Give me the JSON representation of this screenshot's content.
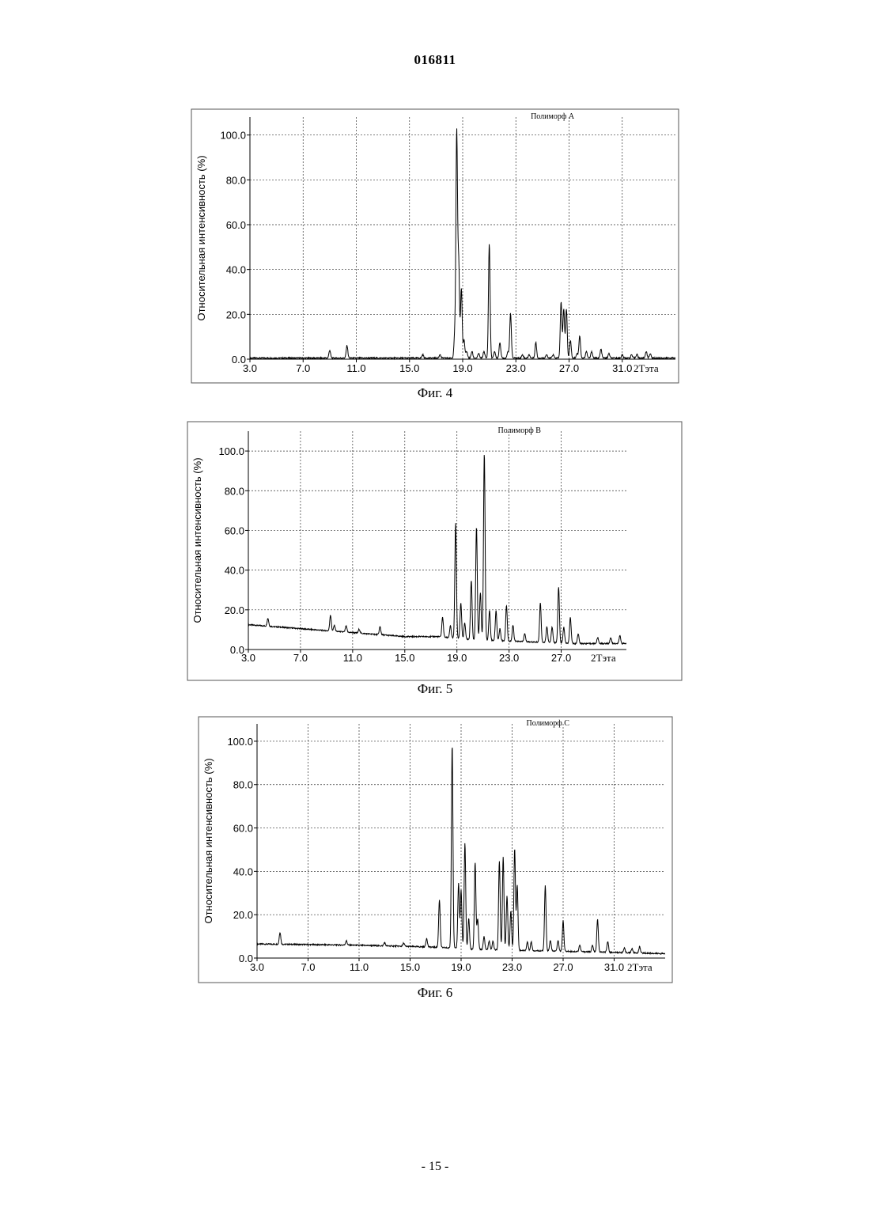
{
  "header": {
    "doc_number": "016811"
  },
  "footer": {
    "page_number": "- 15 -"
  },
  "figures": [
    {
      "caption": "Фиг. 4",
      "chart_data": {
        "type": "line",
        "legend": "Полиморф А",
        "ylabel": "Относительная интенсивность (%)",
        "xunit": "2Тэта",
        "xlim": [
          3.0,
          35.0
        ],
        "ylim": [
          0,
          108
        ],
        "xticks": [
          "3.0",
          "7.0",
          "11.0",
          "15.0",
          "19.0",
          "23.0",
          "27.0",
          "31.0"
        ],
        "yticks": [
          "0.0",
          "20.0",
          "40.0",
          "60.0",
          "80.0",
          "100.0"
        ],
        "grid": true,
        "baseline": 0.5,
        "peaks": [
          [
            9.0,
            3.5
          ],
          [
            10.3,
            5.6
          ],
          [
            16.0,
            1.5
          ],
          [
            17.3,
            1.6
          ],
          [
            18.4,
            10
          ],
          [
            18.55,
            100
          ],
          [
            18.7,
            42
          ],
          [
            18.9,
            31
          ],
          [
            19.1,
            8
          ],
          [
            19.3,
            3
          ],
          [
            19.7,
            3
          ],
          [
            20.2,
            2
          ],
          [
            20.6,
            3
          ],
          [
            21.0,
            51
          ],
          [
            21.4,
            3
          ],
          [
            21.8,
            7
          ],
          [
            22.4,
            3
          ],
          [
            22.6,
            20
          ],
          [
            23.5,
            1.5
          ],
          [
            24.0,
            1.5
          ],
          [
            24.5,
            7
          ],
          [
            25.3,
            1.5
          ],
          [
            25.8,
            1.5
          ],
          [
            26.4,
            25
          ],
          [
            26.6,
            22
          ],
          [
            26.8,
            22
          ],
          [
            27.1,
            8
          ],
          [
            27.6,
            2
          ],
          [
            27.8,
            10
          ],
          [
            28.3,
            3
          ],
          [
            28.7,
            3
          ],
          [
            29.4,
            4
          ],
          [
            30.0,
            2
          ],
          [
            31.0,
            1.5
          ],
          [
            31.7,
            1.5
          ],
          [
            32.1,
            1.8
          ],
          [
            32.8,
            3
          ],
          [
            33.1,
            2
          ]
        ]
      }
    },
    {
      "caption": "Фиг. 5",
      "chart_data": {
        "type": "line",
        "legend": "Полиморф В",
        "ylabel": "Относительная интенсивность (%)",
        "xunit": "2Тэта",
        "xlim": [
          3.0,
          32.0
        ],
        "ylim": [
          0,
          110
        ],
        "xticks": [
          "3.0",
          "7.0",
          "11.0",
          "15.0",
          "19.0",
          "23.0",
          "27.0"
        ],
        "yticks": [
          "0.0",
          "20.0",
          "40.0",
          "60.0",
          "80.0",
          "100.0"
        ],
        "grid": true,
        "baseline_points": [
          [
            3.0,
            12.5
          ],
          [
            7.0,
            10.5
          ],
          [
            11.0,
            8.5
          ],
          [
            15.0,
            6.5
          ],
          [
            17.5,
            6.5
          ],
          [
            20.0,
            5
          ],
          [
            24.0,
            4
          ],
          [
            28.0,
            3
          ],
          [
            32.0,
            3
          ]
        ],
        "peaks": [
          [
            4.5,
            4
          ],
          [
            9.3,
            8
          ],
          [
            9.6,
            3
          ],
          [
            10.5,
            3
          ],
          [
            11.5,
            2
          ],
          [
            13.1,
            4
          ],
          [
            17.9,
            10
          ],
          [
            18.5,
            6
          ],
          [
            18.9,
            58
          ],
          [
            19.3,
            18
          ],
          [
            19.6,
            8
          ],
          [
            20.1,
            30
          ],
          [
            20.5,
            57
          ],
          [
            20.8,
            24
          ],
          [
            21.1,
            94
          ],
          [
            21.5,
            15
          ],
          [
            22.0,
            15
          ],
          [
            22.3,
            6
          ],
          [
            22.8,
            18
          ],
          [
            23.3,
            8
          ],
          [
            24.2,
            4
          ],
          [
            25.4,
            20
          ],
          [
            25.9,
            8
          ],
          [
            26.3,
            8
          ],
          [
            26.8,
            28
          ],
          [
            27.2,
            8
          ],
          [
            27.7,
            13
          ],
          [
            28.3,
            5
          ],
          [
            29.8,
            3
          ],
          [
            30.8,
            3
          ],
          [
            31.5,
            4
          ],
          [
            32.2,
            3
          ]
        ]
      }
    },
    {
      "caption": "Фиг. 6",
      "chart_data": {
        "type": "line",
        "legend": "Полиморф С",
        "ylabel": "Относительная интенсивность (%)",
        "xunit": "2Тэта",
        "xlim": [
          3.0,
          35.0
        ],
        "ylim": [
          0,
          108
        ],
        "xticks": [
          "3.0",
          "7.0",
          "11.0",
          "15.0",
          "19.0",
          "23.0",
          "27.0",
          "31.0"
        ],
        "yticks": [
          "0.0",
          "20.0",
          "40.0",
          "60.0",
          "80.0",
          "100.0"
        ],
        "grid": true,
        "baseline_points": [
          [
            3.0,
            6.5
          ],
          [
            10.0,
            6
          ],
          [
            14.0,
            5.5
          ],
          [
            17.0,
            5
          ],
          [
            20.0,
            4
          ],
          [
            24.0,
            3.5
          ],
          [
            28.0,
            3
          ],
          [
            32.0,
            2.5
          ],
          [
            35.0,
            2
          ]
        ],
        "peaks": [
          [
            4.8,
            5.5
          ],
          [
            10.0,
            2
          ],
          [
            13.0,
            1.5
          ],
          [
            14.5,
            1.5
          ],
          [
            16.3,
            4
          ],
          [
            17.3,
            22
          ],
          [
            18.3,
            94
          ],
          [
            18.8,
            30
          ],
          [
            19.0,
            27
          ],
          [
            19.3,
            49
          ],
          [
            19.6,
            14
          ],
          [
            20.1,
            40
          ],
          [
            20.3,
            14
          ],
          [
            20.8,
            6
          ],
          [
            21.2,
            4
          ],
          [
            21.5,
            4
          ],
          [
            22.0,
            41
          ],
          [
            22.3,
            43
          ],
          [
            22.6,
            25
          ],
          [
            22.9,
            18
          ],
          [
            23.2,
            47
          ],
          [
            23.4,
            30
          ],
          [
            24.2,
            4
          ],
          [
            24.5,
            4
          ],
          [
            25.6,
            30
          ],
          [
            26.0,
            5
          ],
          [
            26.6,
            5
          ],
          [
            27.0,
            14
          ],
          [
            28.3,
            3
          ],
          [
            29.3,
            3
          ],
          [
            29.7,
            15
          ],
          [
            30.5,
            5
          ],
          [
            31.8,
            2
          ],
          [
            32.4,
            2
          ],
          [
            33.0,
            3
          ]
        ]
      }
    }
  ]
}
